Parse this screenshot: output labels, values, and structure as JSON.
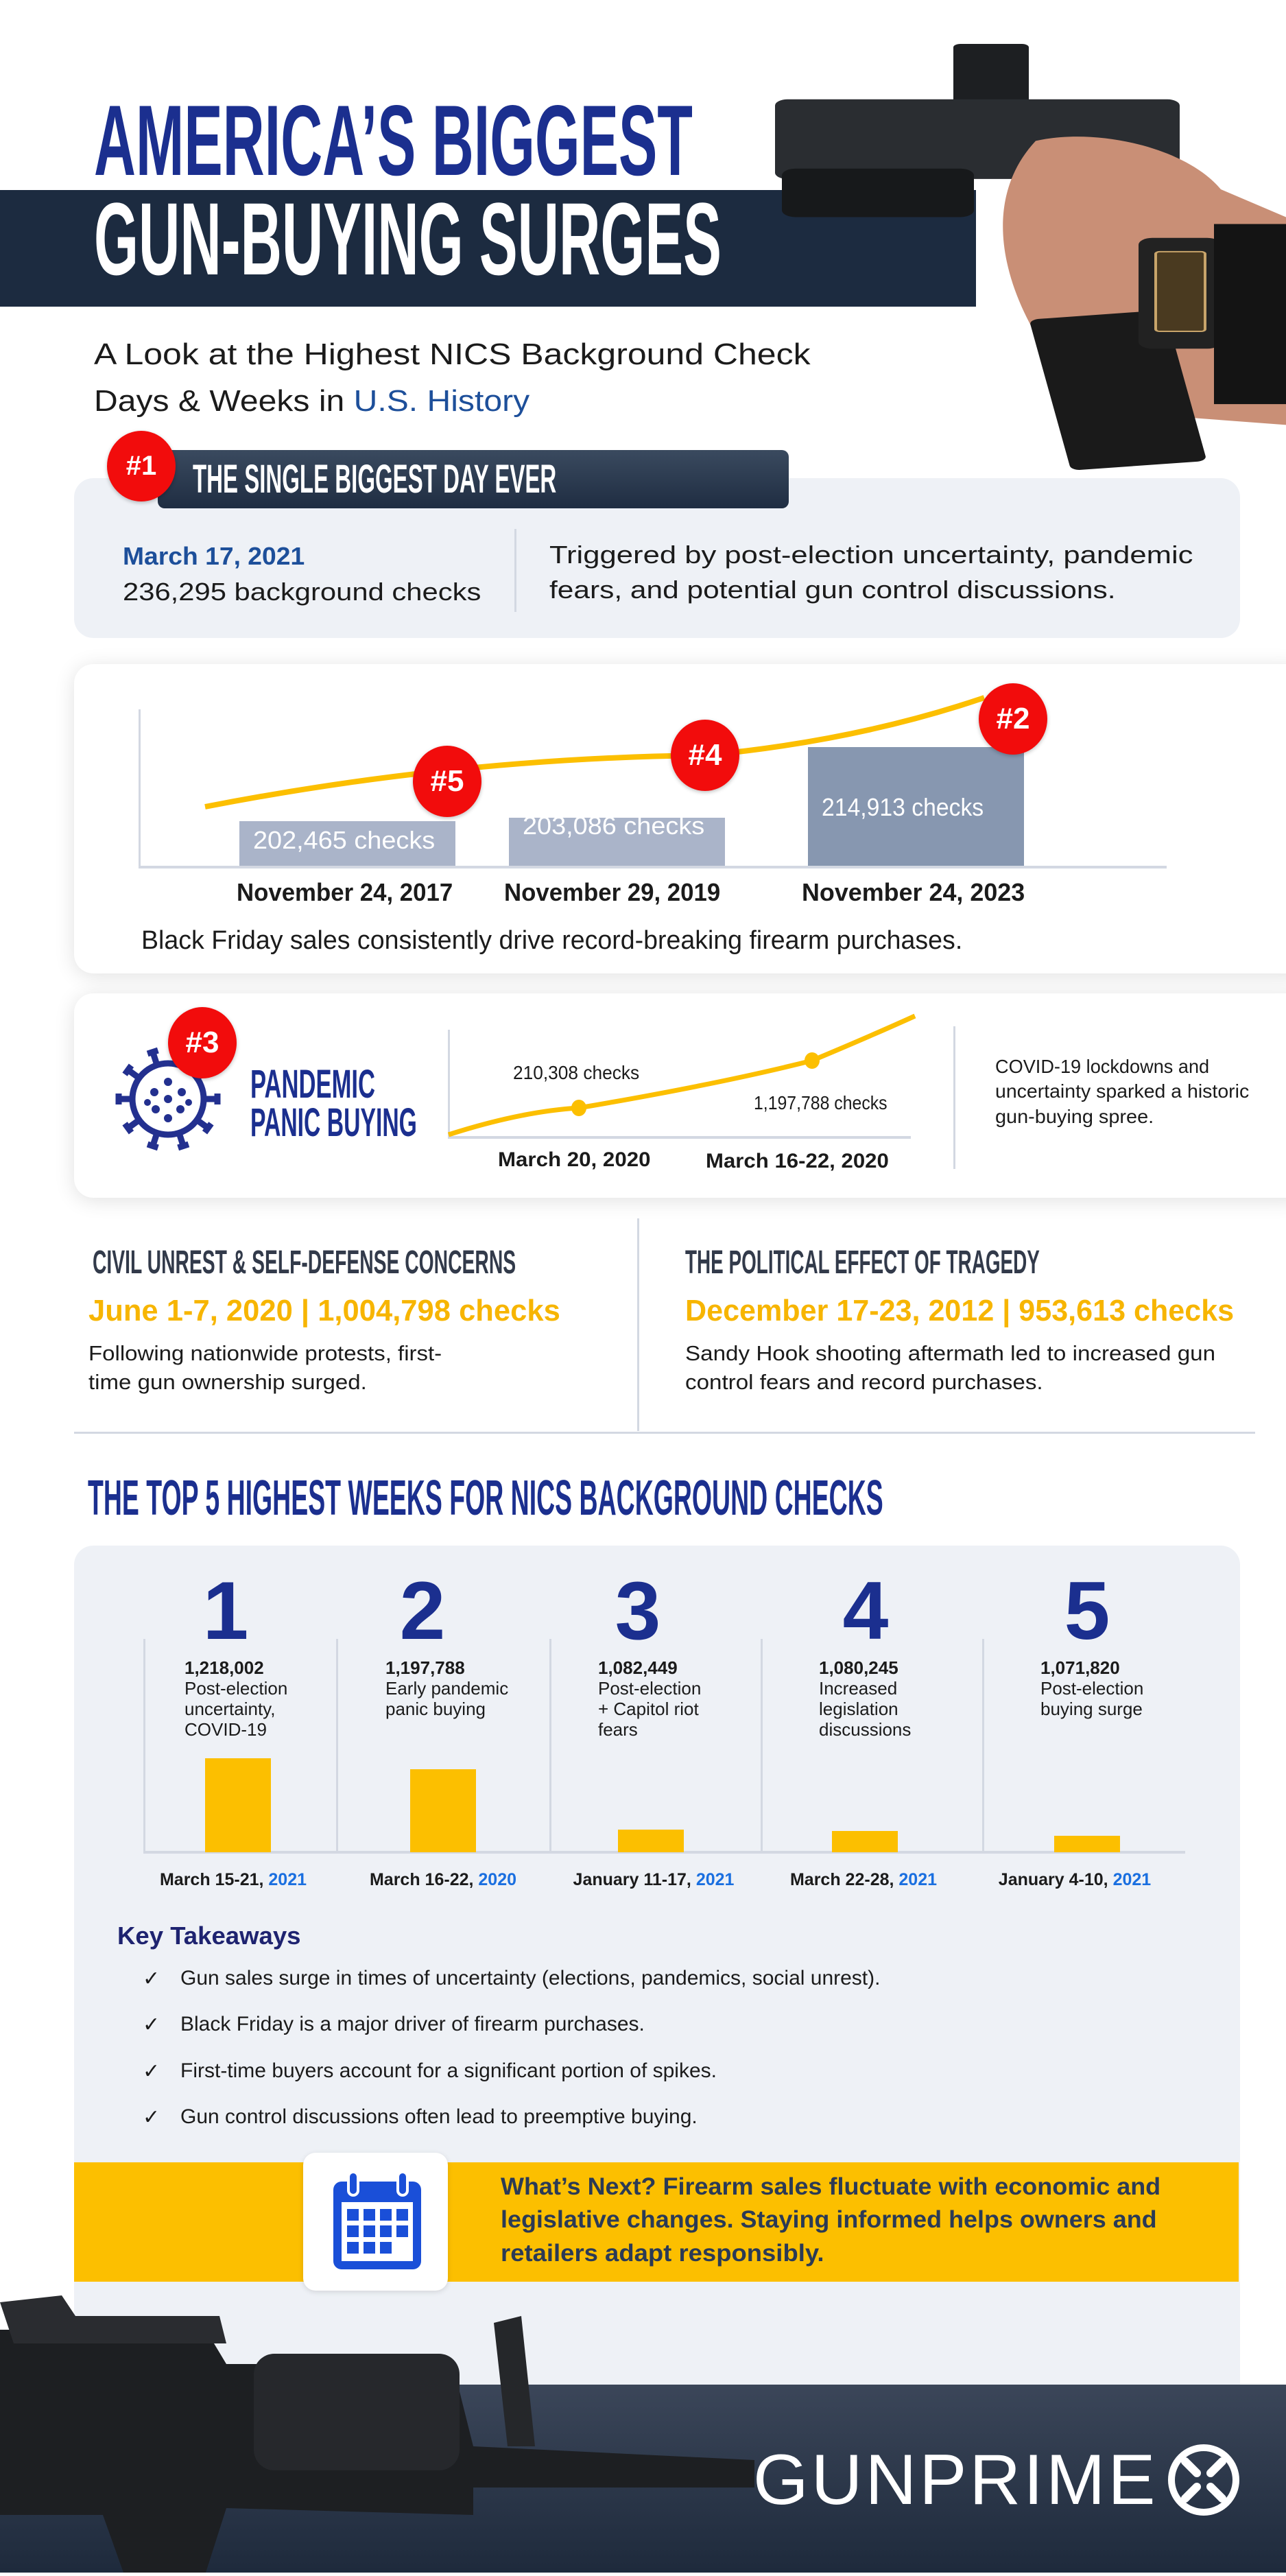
{
  "header": {
    "title_line1": "AMERICA’S BIGGEST",
    "title_line2": "GUN-BUYING SURGES",
    "subtitle_line1": "A Look at the Highest NICS Background Check",
    "subtitle_line2_prefix": "Days & Weeks in ",
    "subtitle_line2_highlight": "U.S. History"
  },
  "biggest_day": {
    "badge": "#1",
    "heading": "THE SINGLE BIGGEST DAY EVER",
    "date": "March 17, 2021",
    "count": "236,295 background checks",
    "description_line1": "Triggered by post-election uncertainty, pandemic",
    "description_line2": "fears, and potential gun control discussions."
  },
  "black_friday": {
    "bars": [
      {
        "badge": "#5",
        "label": "202,465  checks",
        "date": "November 24, 2017",
        "value": 202465
      },
      {
        "badge": "#4",
        "label": "203,086 checks",
        "date": "November 29, 2019",
        "value": 203086
      },
      {
        "badge": "#2",
        "label": "214,913 checks",
        "date": "November 24, 2023",
        "value": 214913
      }
    ],
    "caption": "Black Friday sales consistently drive record-breaking firearm purchases.",
    "colors": {
      "bar_light": "#aab4c9",
      "bar_dark": "#8797b0",
      "trend": "#fcbf00"
    }
  },
  "pandemic": {
    "badge": "#3",
    "icon": "virus-icon",
    "title_line1": "PANDEMIC",
    "title_line2": "PANIC BUYING",
    "point1_label": "210,308 checks",
    "point2_label": "1,197,788 checks",
    "date1": "March 20, 2020",
    "date2": "March 16-22, 2020",
    "description_line1": "COVID-19 lockdowns and",
    "description_line2": "uncertainty sparked a historic",
    "description_line3": "gun-buying spree."
  },
  "civil_unrest": {
    "heading": "CIVIL UNREST & SELF-DEFENSE CONCERNS",
    "stat": "June 1-7, 2020 | 1,004,798 checks",
    "body_line1": "Following nationwide protests, first-",
    "body_line2": "time gun ownership surged."
  },
  "tragedy": {
    "heading": "THE POLITICAL EFFECT OF TRAGEDY",
    "stat": "December 17-23, 2012 | 953,613 checks",
    "body_line1": "Sandy Hook shooting aftermath led to increased gun",
    "body_line2": "control fears and record purchases."
  },
  "top_weeks": {
    "heading": "THE TOP 5 HIGHEST WEEKS FOR NICS BACKGROUND CHECKS",
    "weeks": [
      {
        "rank": "1",
        "count": "1,218,002",
        "desc": [
          "Post-election",
          "uncertainty,",
          "COVID-19"
        ],
        "date": "March 15-21, ",
        "year": "2021",
        "value": 1218002
      },
      {
        "rank": "2",
        "count": "1,197,788",
        "desc": [
          "Early pandemic",
          "panic buying"
        ],
        "date": "March 16-22, ",
        "year": "2020",
        "value": 1197788
      },
      {
        "rank": "3",
        "count": "1,082,449",
        "desc": [
          "Post-election",
          "+ Capitol riot",
          "fears"
        ],
        "date": "January 11-17, ",
        "year": "2021",
        "value": 1082449
      },
      {
        "rank": "4",
        "count": "1,080,245",
        "desc": [
          "Increased",
          "legislation",
          "discussions"
        ],
        "date": "March 22-28, ",
        "year": "2021",
        "value": 1080245
      },
      {
        "rank": "5",
        "count": "1,071,820",
        "desc": [
          "Post-election",
          "buying surge"
        ],
        "date": "January 4-10, ",
        "year": "2021",
        "value": 1071820
      }
    ]
  },
  "takeaways": {
    "heading": "Key Takeaways",
    "check_icon": "✓",
    "items": [
      "Gun sales surge in times of uncertainty (elections, pandemics, social unrest).",
      "Black Friday is a major driver of firearm purchases.",
      "First-time buyers account for a significant portion of spikes.",
      "Gun control discussions often lead to preemptive buying."
    ]
  },
  "whats_next": {
    "icon": "calendar-icon",
    "line1": "What’s Next? Firearm sales fluctuate with economic and",
    "line2": "legislative changes. Staying informed helps owners and",
    "line3": "retailers adapt responsibly."
  },
  "footer": {
    "logo": "GUNPRIME"
  },
  "colors": {
    "navy": "#1b2f8f",
    "dark_band": "#1c2b40",
    "red_badge": "#f20c0c",
    "yellow": "#fcbf00",
    "card_gray": "#eef1f6",
    "year_blue": "#1a6fe0"
  }
}
